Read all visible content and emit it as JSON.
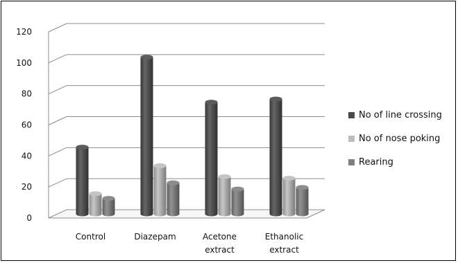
{
  "chart_data": {
    "type": "bar",
    "categories": [
      "Control",
      "Diazepam",
      "Acetone extract",
      "Ethanolic extract"
    ],
    "category_label_lines": [
      [
        "Control"
      ],
      [
        "Diazepam"
      ],
      [
        "Acetone",
        "extract"
      ],
      [
        "Ethanolic",
        "extract"
      ]
    ],
    "series": [
      {
        "name": "No of line crossing",
        "values": [
          43,
          101,
          72,
          74
        ],
        "color": "#4a4a4a"
      },
      {
        "name": "No of nose poking",
        "values": [
          13,
          31,
          24,
          23
        ],
        "color": "#bdbdbd"
      },
      {
        "name": "Rearing",
        "values": [
          10,
          20,
          16,
          17
        ],
        "color": "#7f7f7f"
      }
    ],
    "ylim": [
      0,
      120
    ],
    "yticks": [
      0,
      20,
      40,
      60,
      80,
      100,
      120
    ],
    "grid": true,
    "legend_position": "right",
    "style": "3d-cylinder"
  }
}
